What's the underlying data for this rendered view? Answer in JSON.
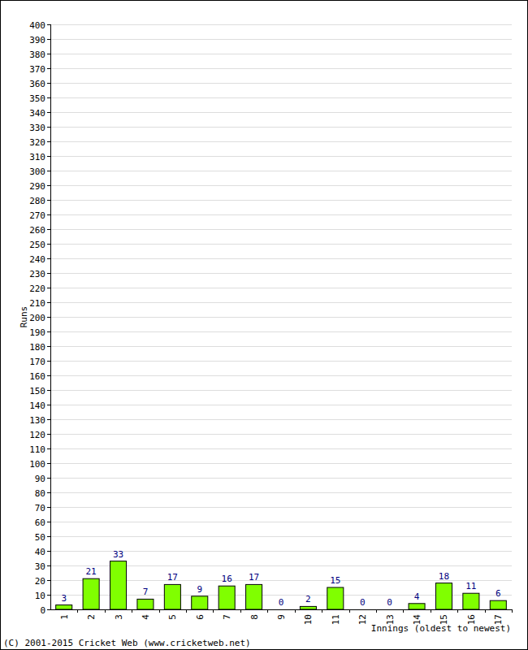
{
  "chart_data": {
    "type": "bar",
    "ylabel": "Runs",
    "xlabel": "Innings (oldest to newest)",
    "annotations": [
      "(C) 2001-2015 Cricket Web (www.cricketweb.net)"
    ],
    "categories": [
      "1",
      "2",
      "3",
      "4",
      "5",
      "6",
      "7",
      "8",
      "9",
      "10",
      "11",
      "12",
      "13",
      "14",
      "15",
      "16",
      "17"
    ],
    "values": [
      3,
      21,
      33,
      7,
      17,
      9,
      16,
      17,
      0,
      2,
      15,
      0,
      0,
      4,
      18,
      11,
      6
    ],
    "color": "#80ff00",
    "ylim": [
      0,
      400
    ],
    "yticks": [
      0,
      10,
      20,
      30,
      40,
      50,
      60,
      70,
      80,
      90,
      100,
      110,
      120,
      130,
      140,
      150,
      160,
      170,
      180,
      190,
      200,
      210,
      220,
      230,
      240,
      250,
      260,
      270,
      280,
      290,
      300,
      310,
      320,
      330,
      340,
      350,
      360,
      370,
      380,
      390,
      400
    ],
    "grid": true,
    "data_labels": true
  }
}
